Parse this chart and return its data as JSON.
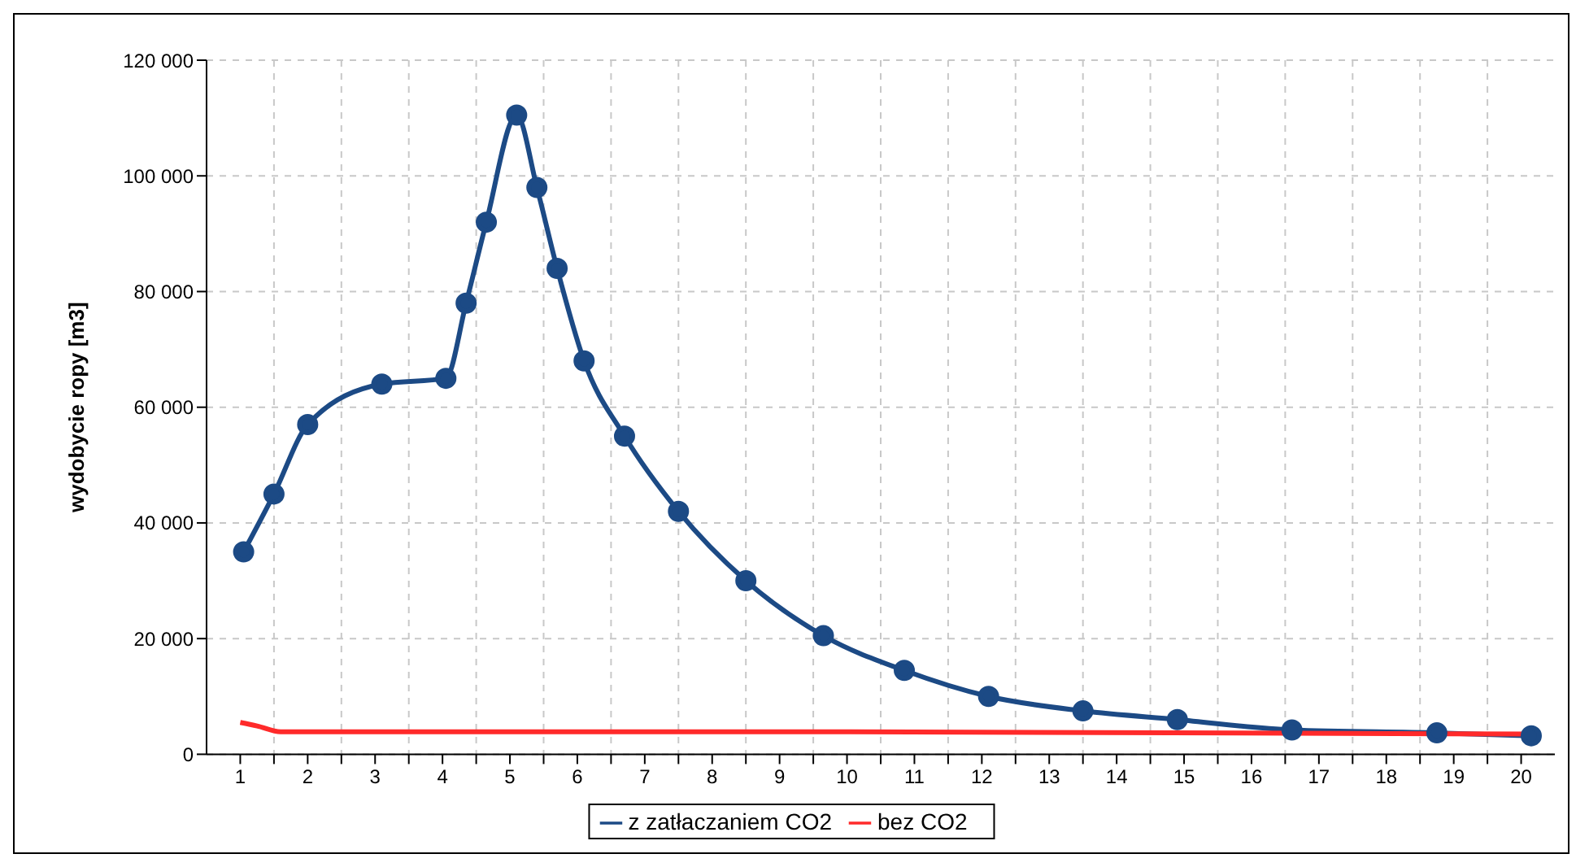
{
  "chart_data": {
    "type": "line",
    "ylabel": "wydobycie ropy [m3]",
    "xlim": [
      0.5,
      20.5
    ],
    "xticks": [
      1,
      {
        "value": 1.5,
        "label": null
      },
      2,
      {
        "value": 2.5,
        "label": null
      },
      3,
      {
        "value": 3.5,
        "label": null
      },
      4,
      {
        "value": 4.5,
        "label": null
      },
      5,
      {
        "value": 5.5,
        "label": null
      },
      6,
      {
        "value": 6.5,
        "label": null
      },
      7,
      {
        "value": 7.5,
        "label": null
      },
      8,
      {
        "value": 8.5,
        "label": null
      },
      9,
      {
        "value": 9.5,
        "label": null
      },
      10,
      {
        "value": 10.5,
        "label": null
      },
      11,
      {
        "value": 11.5,
        "label": null
      },
      12,
      {
        "value": 12.5,
        "label": null
      },
      13,
      {
        "value": 13.5,
        "label": null
      },
      14,
      {
        "value": 14.5,
        "label": null
      },
      15,
      {
        "value": 15.5,
        "label": null
      },
      16,
      {
        "value": 16.5,
        "label": null
      },
      17,
      {
        "value": 17.5,
        "label": null
      },
      18,
      {
        "value": 18.5,
        "label": null
      },
      19,
      {
        "value": 19.5,
        "label": null
      },
      20
    ],
    "ylim": [
      0,
      120000
    ],
    "yticks": [
      0,
      {
        "value": 20000,
        "label": "20 000"
      },
      {
        "value": 40000,
        "label": "40 000"
      },
      {
        "value": 60000,
        "label": "60 000"
      },
      {
        "value": 80000,
        "label": "80 000"
      },
      {
        "value": 100000,
        "label": "100 000"
      },
      {
        "value": 120000,
        "label": "120 000"
      }
    ],
    "grid": true,
    "legend": "bottom",
    "marker": "circle",
    "line_style": "solid",
    "series": [
      {
        "name": "z zatłaczaniem CO2",
        "color": "#1c4a85",
        "x": [
          1.05,
          1.5,
          2.0,
          3.1,
          4.05,
          4.35,
          4.65,
          5.1,
          5.4,
          5.7,
          6.1,
          6.7,
          7.5,
          8.5,
          9.65,
          10.85,
          12.1,
          13.5,
          14.9,
          16.6,
          18.75,
          20.15
        ],
        "values": [
          35000,
          45000,
          57000,
          64000,
          65000,
          78000,
          92000,
          110500,
          98000,
          84000,
          68000,
          55000,
          42000,
          30000,
          20500,
          14500,
          10000,
          7500,
          6000,
          4200,
          3700,
          3200
        ]
      },
      {
        "name": "bez CO2",
        "color": "#ff2a2a",
        "marker": "none",
        "x": [
          1.0,
          1.25,
          1.6,
          10,
          20.2
        ],
        "values": [
          5500,
          4900,
          3900,
          3900,
          3500
        ]
      }
    ]
  }
}
